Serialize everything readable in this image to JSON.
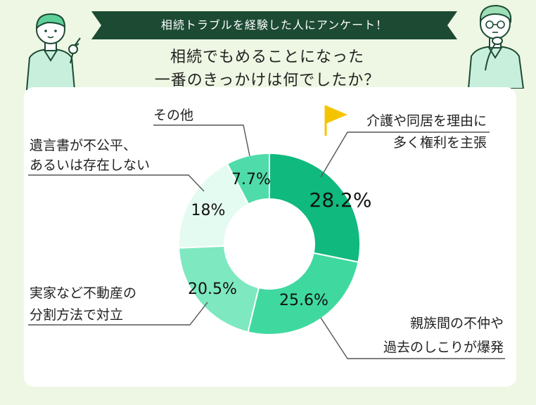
{
  "banner": "相続トラブルを経験した人にアンケート！",
  "question": {
    "line1": "相続でもめることになった",
    "line2": "一番のきっかけは何でしたか？"
  },
  "chart_data": {
    "type": "pie",
    "donut": true,
    "start_angle_deg": 0,
    "direction": "clockwise",
    "slices": [
      {
        "label_lines": [
          "介護や同居を理由に",
          "多く権利を主張"
        ],
        "value": 28.2,
        "display": "28.2%",
        "color": "#10b97d"
      },
      {
        "label_lines": [
          "親族間の不仲や",
          "過去のしこりが爆発"
        ],
        "value": 25.6,
        "display": "25.6%",
        "color": "#3fd9a0"
      },
      {
        "label_lines": [
          "実家など不動産の",
          "分割方法で対立"
        ],
        "value": 20.5,
        "display": "20.5%",
        "color": "#7ee8c0"
      },
      {
        "label_lines": [
          "遺言書が不公平、",
          "あるいは存在しない"
        ],
        "value": 18.0,
        "display": "18%",
        "color": "#e4fbf1"
      },
      {
        "label_lines": [
          "その他"
        ],
        "value": 7.7,
        "display": "7.7%",
        "color": "#4fdcaa"
      }
    ]
  },
  "colors": {
    "background": "#eef7e3",
    "banner": "#1c4a33",
    "card": "#ffffff",
    "leader": "#555555",
    "flag": "#f5c400"
  },
  "icons": [
    "flag-icon",
    "pointing-person-icon",
    "thinking-person-icon"
  ]
}
